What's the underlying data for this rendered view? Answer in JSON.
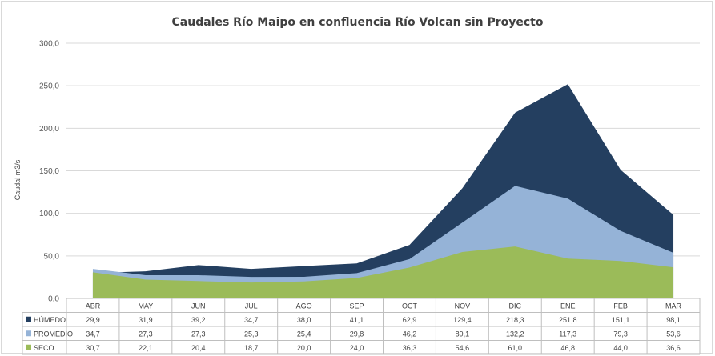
{
  "chart_data": {
    "type": "area",
    "title": "Caudales Río Maipo en confluencia Río Volcan sin Proyecto",
    "ylabel": "Caudal m3/s",
    "xlabel": "",
    "ylim": [
      0,
      300
    ],
    "yticks": [
      "0,0",
      "50,0",
      "100,0",
      "150,0",
      "200,0",
      "250,0",
      "300,0"
    ],
    "grid": true,
    "legend": "table-bottom",
    "categories": [
      "ABR",
      "MAY",
      "JUN",
      "JUL",
      "AGO",
      "SEP",
      "OCT",
      "NOV",
      "DIC",
      "ENE",
      "FEB",
      "MAR"
    ],
    "series": [
      {
        "name": "HÚMEDO",
        "color": "#243f60",
        "values": [
          29.9,
          31.9,
          39.2,
          34.7,
          38.0,
          41.1,
          62.9,
          129.4,
          218.3,
          251.8,
          151.1,
          98.1
        ],
        "labels": [
          "29,9",
          "31,9",
          "39,2",
          "34,7",
          "38,0",
          "41,1",
          "62,9",
          "129,4",
          "218,3",
          "251,8",
          "151,1",
          "98,1"
        ]
      },
      {
        "name": "PROMEDIO",
        "color": "#95b3d7",
        "values": [
          34.7,
          27.3,
          27.3,
          25.3,
          25.4,
          29.8,
          46.2,
          89.1,
          132.2,
          117.3,
          79.3,
          53.6
        ],
        "labels": [
          "34,7",
          "27,3",
          "27,3",
          "25,3",
          "25,4",
          "29,8",
          "46,2",
          "89,1",
          "132,2",
          "117,3",
          "79,3",
          "53,6"
        ]
      },
      {
        "name": "SECO",
        "color": "#9bbb59",
        "values": [
          30.7,
          22.1,
          20.4,
          18.7,
          20.0,
          24.0,
          36.3,
          54.6,
          61.0,
          46.8,
          44.0,
          36.6
        ],
        "labels": [
          "30,7",
          "22,1",
          "20,4",
          "18,7",
          "20,0",
          "24,0",
          "36,3",
          "54,6",
          "61,0",
          "46,8",
          "44,0",
          "36,6"
        ]
      }
    ]
  }
}
